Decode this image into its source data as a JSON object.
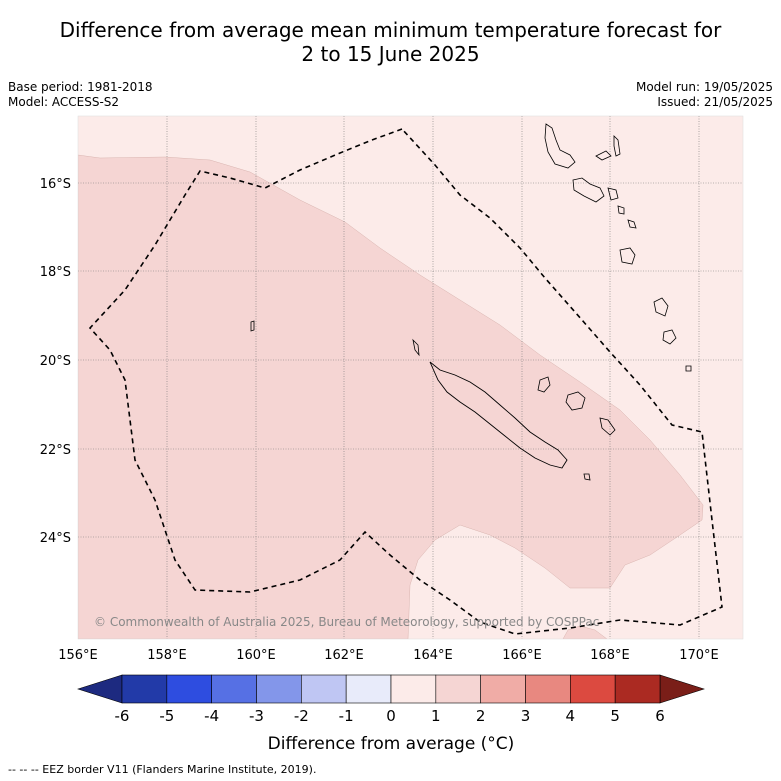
{
  "title_line1": "Difference from average mean minimum temperature forecast for",
  "title_line2": "2 to 15 June 2025",
  "base_period": "Base period: 1981-2018",
  "model": "Model: ACCESS-S2",
  "model_run": "Model run: 19/05/2025",
  "issued": "Issued: 21/05/2025",
  "copyright": "© Commonwealth of Australia 2025, Bureau of Meteorology, supported by COSPPac",
  "map": {
    "lon_labels": [
      "156°E",
      "158°E",
      "160°E",
      "162°E",
      "164°E",
      "166°E",
      "168°E",
      "170°E"
    ],
    "lat_labels": [
      "16°S",
      "18°S",
      "20°S",
      "22°S",
      "24°S"
    ],
    "region_colors": {
      "0_to_1": "#fcebe9",
      "1_to_2": "#f5d5d3"
    }
  },
  "colorbar": {
    "ticks": [
      "-6",
      "-5",
      "-4",
      "-3",
      "-2",
      "-1",
      "0",
      "1",
      "2",
      "3",
      "4",
      "5",
      "6"
    ],
    "colors": [
      "#223aa8",
      "#2e4de0",
      "#5670e4",
      "#8396ea",
      "#bfc6f3",
      "#e8ebfa",
      "#fcebe9",
      "#f5d5d3",
      "#f0aca6",
      "#e88880",
      "#dc4a40",
      "#ab2a22"
    ],
    "low_extend_color": "#1d2a80",
    "high_extend_color": "#7a1e18",
    "label": "Difference from average (°C)"
  },
  "legend_note": "--  --  -- EEZ border V11 (Flanders Marine Institute, 2019)."
}
